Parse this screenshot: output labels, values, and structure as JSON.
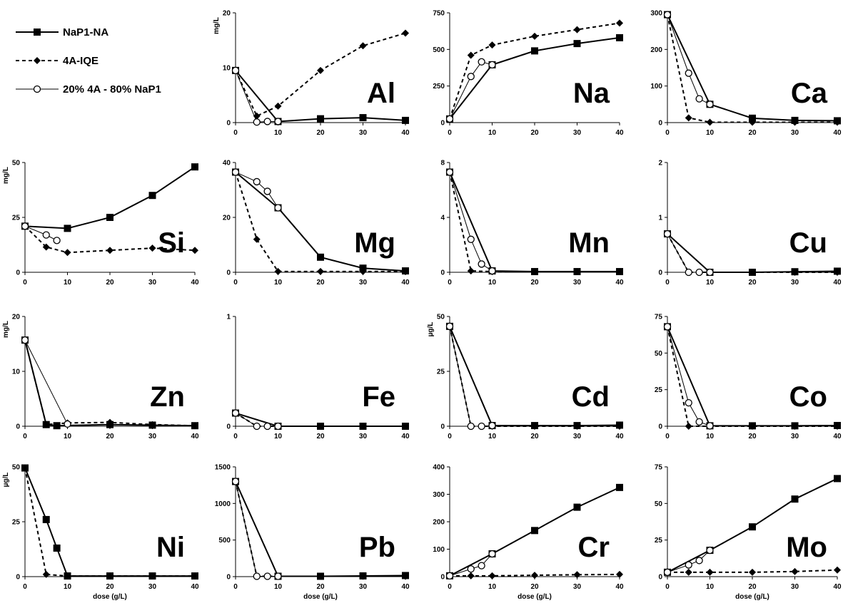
{
  "legend": [
    {
      "name": "NaP1-NA",
      "color": "#000000",
      "marker": "square",
      "dash": "none",
      "width": 2
    },
    {
      "name": "4A-IQE",
      "color": "#000000",
      "marker": "diamond",
      "dash": "5,4",
      "width": 2
    },
    {
      "name": "20% 4A - 80% NaP1",
      "color": "#000000",
      "marker": "circle",
      "dash": "none",
      "width": 1
    }
  ],
  "chart_data": [
    {
      "type": "line",
      "label": "Al",
      "ylabel": "mg/L",
      "xlim": [
        0,
        40
      ],
      "xticks": [
        0,
        10,
        20,
        30,
        40
      ],
      "ylim": [
        0,
        20
      ],
      "yticks": [
        0,
        10,
        20
      ],
      "series": [
        {
          "style": 0,
          "x": [
            0,
            10,
            20,
            30,
            40
          ],
          "values": [
            9.5,
            0.2,
            0.7,
            0.9,
            0.4
          ]
        },
        {
          "style": 1,
          "x": [
            0,
            5,
            10,
            20,
            30,
            40
          ],
          "values": [
            9.5,
            1.2,
            3,
            9.5,
            14,
            16.3
          ]
        },
        {
          "style": 2,
          "x": [
            0,
            5,
            7.5,
            10
          ],
          "values": [
            9.5,
            0.1,
            0.2,
            0.2
          ]
        }
      ]
    },
    {
      "type": "line",
      "label": "Na",
      "xlim": [
        0,
        40
      ],
      "xticks": [
        0,
        10,
        20,
        30,
        40
      ],
      "ylim": [
        0,
        750
      ],
      "yticks": [
        0,
        250,
        500,
        750
      ],
      "series": [
        {
          "style": 0,
          "x": [
            0,
            10,
            20,
            30,
            40
          ],
          "values": [
            25,
            395,
            490,
            540,
            580
          ]
        },
        {
          "style": 1,
          "x": [
            0,
            5,
            10,
            20,
            30,
            40
          ],
          "values": [
            25,
            460,
            530,
            590,
            635,
            680
          ]
        },
        {
          "style": 2,
          "x": [
            0,
            5,
            7.5,
            10
          ],
          "values": [
            25,
            315,
            415,
            395
          ]
        }
      ]
    },
    {
      "type": "line",
      "label": "Ca",
      "xlim": [
        0,
        40
      ],
      "xticks": [
        0,
        10,
        20,
        30,
        40
      ],
      "ylim": [
        0,
        300
      ],
      "yticks": [
        0,
        100,
        200,
        300
      ],
      "series": [
        {
          "style": 0,
          "x": [
            0,
            10,
            20,
            30,
            40
          ],
          "values": [
            295,
            50,
            12,
            6,
            5
          ]
        },
        {
          "style": 1,
          "x": [
            0,
            5,
            10,
            20,
            30,
            40
          ],
          "values": [
            295,
            13,
            1,
            1,
            1,
            1
          ]
        },
        {
          "style": 2,
          "x": [
            0,
            5,
            7.5,
            10
          ],
          "values": [
            295,
            135,
            65,
            50
          ]
        }
      ]
    },
    {
      "type": "line",
      "label": "Si",
      "ylabel": "mg/L",
      "xlim": [
        0,
        40
      ],
      "xticks": [
        0,
        10,
        20,
        30,
        40
      ],
      "ylim": [
        0,
        50
      ],
      "yticks": [
        0,
        25,
        50
      ],
      "series": [
        {
          "style": 0,
          "x": [
            0,
            10,
            20,
            30,
            40
          ],
          "values": [
            21,
            20,
            25,
            35,
            48
          ]
        },
        {
          "style": 1,
          "x": [
            0,
            5,
            10,
            20,
            30,
            40
          ],
          "values": [
            21,
            11.5,
            9,
            10,
            11,
            10
          ]
        },
        {
          "style": 2,
          "x": [
            0,
            5,
            7.5
          ],
          "values": [
            21,
            17,
            14.5
          ]
        }
      ]
    },
    {
      "type": "line",
      "label": "Mg",
      "xlim": [
        0,
        40
      ],
      "xticks": [
        0,
        10,
        20,
        30,
        40
      ],
      "ylim": [
        0,
        40
      ],
      "yticks": [
        0,
        20,
        40
      ],
      "series": [
        {
          "style": 0,
          "x": [
            0,
            10,
            20,
            30,
            40
          ],
          "values": [
            36.5,
            23.5,
            5.5,
            1.5,
            0.5
          ]
        },
        {
          "style": 1,
          "x": [
            0,
            5,
            10,
            20,
            30,
            40
          ],
          "values": [
            36.5,
            12,
            0.3,
            0.3,
            0.3,
            0.3
          ]
        },
        {
          "style": 2,
          "x": [
            0,
            5,
            7.5,
            10
          ],
          "values": [
            36.5,
            33,
            29.5,
            23.5
          ]
        }
      ]
    },
    {
      "type": "line",
      "label": "Mn",
      "xlim": [
        0,
        40
      ],
      "xticks": [
        0,
        10,
        20,
        30,
        40
      ],
      "ylim": [
        0,
        8
      ],
      "yticks": [
        0,
        4,
        8
      ],
      "series": [
        {
          "style": 0,
          "x": [
            0,
            10,
            20,
            30,
            40
          ],
          "values": [
            7.3,
            0.1,
            0.05,
            0.05,
            0.05
          ]
        },
        {
          "style": 1,
          "x": [
            0,
            5,
            10,
            20,
            30,
            40
          ],
          "values": [
            7.3,
            0.1,
            0.05,
            0.05,
            0.05,
            0.05
          ]
        },
        {
          "style": 2,
          "x": [
            0,
            5,
            7.5,
            10
          ],
          "values": [
            7.3,
            2.4,
            0.6,
            0.1
          ]
        }
      ]
    },
    {
      "type": "line",
      "label": "Cu",
      "xlim": [
        0,
        40
      ],
      "xticks": [
        0,
        10,
        20,
        30,
        40
      ],
      "ylim": [
        0,
        2
      ],
      "yticks": [
        0,
        1,
        2
      ],
      "series": [
        {
          "style": 0,
          "x": [
            0,
            10,
            20,
            30,
            40
          ],
          "values": [
            0.7,
            0,
            0,
            0.01,
            0.02
          ]
        },
        {
          "style": 1,
          "x": [
            0,
            5,
            10,
            20,
            30,
            40
          ],
          "values": [
            0.7,
            0,
            0,
            0,
            0,
            0
          ]
        },
        {
          "style": 2,
          "x": [
            0,
            5,
            7.5,
            10
          ],
          "values": [
            0.7,
            0,
            0,
            0
          ]
        }
      ]
    },
    {
      "type": "line",
      "label": "Zn",
      "ylabel": "mg/L",
      "xlim": [
        0,
        40
      ],
      "xticks": [
        0,
        10,
        20,
        30,
        40
      ],
      "ylim": [
        0,
        20
      ],
      "yticks": [
        0,
        10,
        20
      ],
      "series": [
        {
          "style": 0,
          "x": [
            0,
            5,
            7.5,
            20,
            30,
            40
          ],
          "values": [
            15.7,
            0.3,
            0.1,
            0.3,
            0.2,
            0.1
          ]
        },
        {
          "style": 1,
          "x": [
            0,
            5,
            10,
            20,
            30,
            40
          ],
          "values": [
            15.7,
            0.3,
            0.6,
            0.7,
            0.3,
            0.1
          ]
        },
        {
          "style": 2,
          "x": [
            0,
            10
          ],
          "values": [
            15.7,
            0.4
          ]
        }
      ]
    },
    {
      "type": "line",
      "label": "Fe",
      "xlim": [
        0,
        40
      ],
      "xticks": [
        0,
        10,
        20,
        30,
        40
      ],
      "ylim": [
        0,
        1
      ],
      "yticks": [
        0,
        1
      ],
      "series": [
        {
          "style": 0,
          "x": [
            0,
            10,
            20,
            30,
            40
          ],
          "values": [
            0.12,
            0,
            0,
            0,
            0
          ]
        },
        {
          "style": 1,
          "x": [
            0,
            5,
            10,
            20,
            30,
            40
          ],
          "values": [
            0.12,
            0,
            0,
            0,
            0,
            0
          ]
        },
        {
          "style": 2,
          "x": [
            0,
            5,
            7.5,
            10
          ],
          "values": [
            0.12,
            0,
            0,
            0
          ]
        }
      ]
    },
    {
      "type": "line",
      "label": "Cd",
      "ylabel": "µg/L",
      "xlim": [
        0,
        40
      ],
      "xticks": [
        0,
        10,
        20,
        30,
        40
      ],
      "ylim": [
        0,
        50
      ],
      "yticks": [
        0,
        25,
        50
      ],
      "series": [
        {
          "style": 0,
          "x": [
            0,
            10,
            20,
            30,
            40
          ],
          "values": [
            45.5,
            0.3,
            0.3,
            0.3,
            0.5
          ]
        },
        {
          "style": 1,
          "x": [
            0,
            5,
            10,
            20,
            30,
            40
          ],
          "values": [
            45.5,
            0,
            0,
            0,
            0,
            0
          ]
        },
        {
          "style": 2,
          "x": [
            0,
            5,
            7.5,
            10
          ],
          "values": [
            45.5,
            0,
            0,
            0.3
          ]
        }
      ]
    },
    {
      "type": "line",
      "label": "Co",
      "xlim": [
        0,
        40
      ],
      "xticks": [
        0,
        10,
        20,
        30,
        40
      ],
      "ylim": [
        0,
        75
      ],
      "yticks": [
        0,
        25,
        50,
        75
      ],
      "series": [
        {
          "style": 0,
          "x": [
            0,
            10,
            20,
            30,
            40
          ],
          "values": [
            68,
            0.3,
            0.3,
            0.3,
            0.5
          ]
        },
        {
          "style": 1,
          "x": [
            0,
            5,
            10,
            20,
            30,
            40
          ],
          "values": [
            68,
            0,
            0,
            0,
            0,
            0
          ]
        },
        {
          "style": 2,
          "x": [
            0,
            5,
            7.5,
            10
          ],
          "values": [
            68,
            16,
            3,
            0.3
          ]
        }
      ]
    },
    {
      "type": "line",
      "label": "Ni",
      "ylabel": "µg/L",
      "xlabel": "dose (g/L)",
      "xlim": [
        0,
        40
      ],
      "xticks": [
        0,
        10,
        20,
        30,
        40
      ],
      "ylim": [
        0,
        50
      ],
      "yticks": [
        0,
        25,
        50
      ],
      "series": [
        {
          "style": 0,
          "x": [
            0,
            5,
            7.5,
            10,
            20,
            30,
            40
          ],
          "values": [
            49.5,
            26,
            13,
            0.3,
            0.3,
            0.3,
            0.3
          ]
        },
        {
          "style": 1,
          "x": [
            0,
            5,
            10,
            20,
            30,
            40
          ],
          "values": [
            49.5,
            1,
            0.3,
            0.3,
            0.3,
            0.3
          ]
        }
      ]
    },
    {
      "type": "line",
      "label": "Pb",
      "xlabel": "dose (g/L)",
      "xlim": [
        0,
        40
      ],
      "xticks": [
        0,
        10,
        20,
        30,
        40
      ],
      "ylim": [
        0,
        1500
      ],
      "yticks": [
        0,
        500,
        1000,
        1500
      ],
      "series": [
        {
          "style": 0,
          "x": [
            0,
            10,
            20,
            30,
            40
          ],
          "values": [
            1300,
            5,
            5,
            10,
            15
          ]
        },
        {
          "style": 1,
          "x": [
            0,
            5,
            10,
            20,
            30,
            40
          ],
          "values": [
            1300,
            5,
            5,
            5,
            5,
            5
          ]
        },
        {
          "style": 2,
          "x": [
            0,
            5,
            7.5,
            10
          ],
          "values": [
            1300,
            5,
            5,
            5
          ]
        }
      ]
    },
    {
      "type": "line",
      "label": "Cr",
      "xlabel": "dose (g/L)",
      "xlim": [
        0,
        40
      ],
      "xticks": [
        0,
        10,
        20,
        30,
        40
      ],
      "ylim": [
        0,
        400
      ],
      "yticks": [
        0,
        100,
        200,
        300,
        400
      ],
      "series": [
        {
          "style": 0,
          "x": [
            0,
            10,
            20,
            30,
            40
          ],
          "values": [
            3,
            83,
            168,
            253,
            325
          ]
        },
        {
          "style": 1,
          "x": [
            0,
            5,
            10,
            20,
            30,
            40
          ],
          "values": [
            3,
            3,
            3,
            5,
            7,
            8
          ]
        },
        {
          "style": 2,
          "x": [
            0,
            5,
            7.5,
            10
          ],
          "values": [
            3,
            28,
            40,
            83
          ]
        }
      ]
    },
    {
      "type": "line",
      "label": "Mo",
      "xlabel": "dose (g/L)",
      "xlim": [
        0,
        40
      ],
      "xticks": [
        0,
        10,
        20,
        30,
        40
      ],
      "ylim": [
        0,
        75
      ],
      "yticks": [
        0,
        25,
        50,
        75
      ],
      "series": [
        {
          "style": 0,
          "x": [
            0,
            10,
            20,
            30,
            40
          ],
          "values": [
            3,
            18,
            34,
            53,
            67
          ]
        },
        {
          "style": 1,
          "x": [
            0,
            5,
            10,
            20,
            30,
            40
          ],
          "values": [
            3,
            3,
            3,
            3,
            3.5,
            4.5
          ]
        },
        {
          "style": 2,
          "x": [
            0,
            5,
            7.5,
            10
          ],
          "values": [
            3,
            8,
            11,
            18
          ]
        }
      ]
    }
  ]
}
